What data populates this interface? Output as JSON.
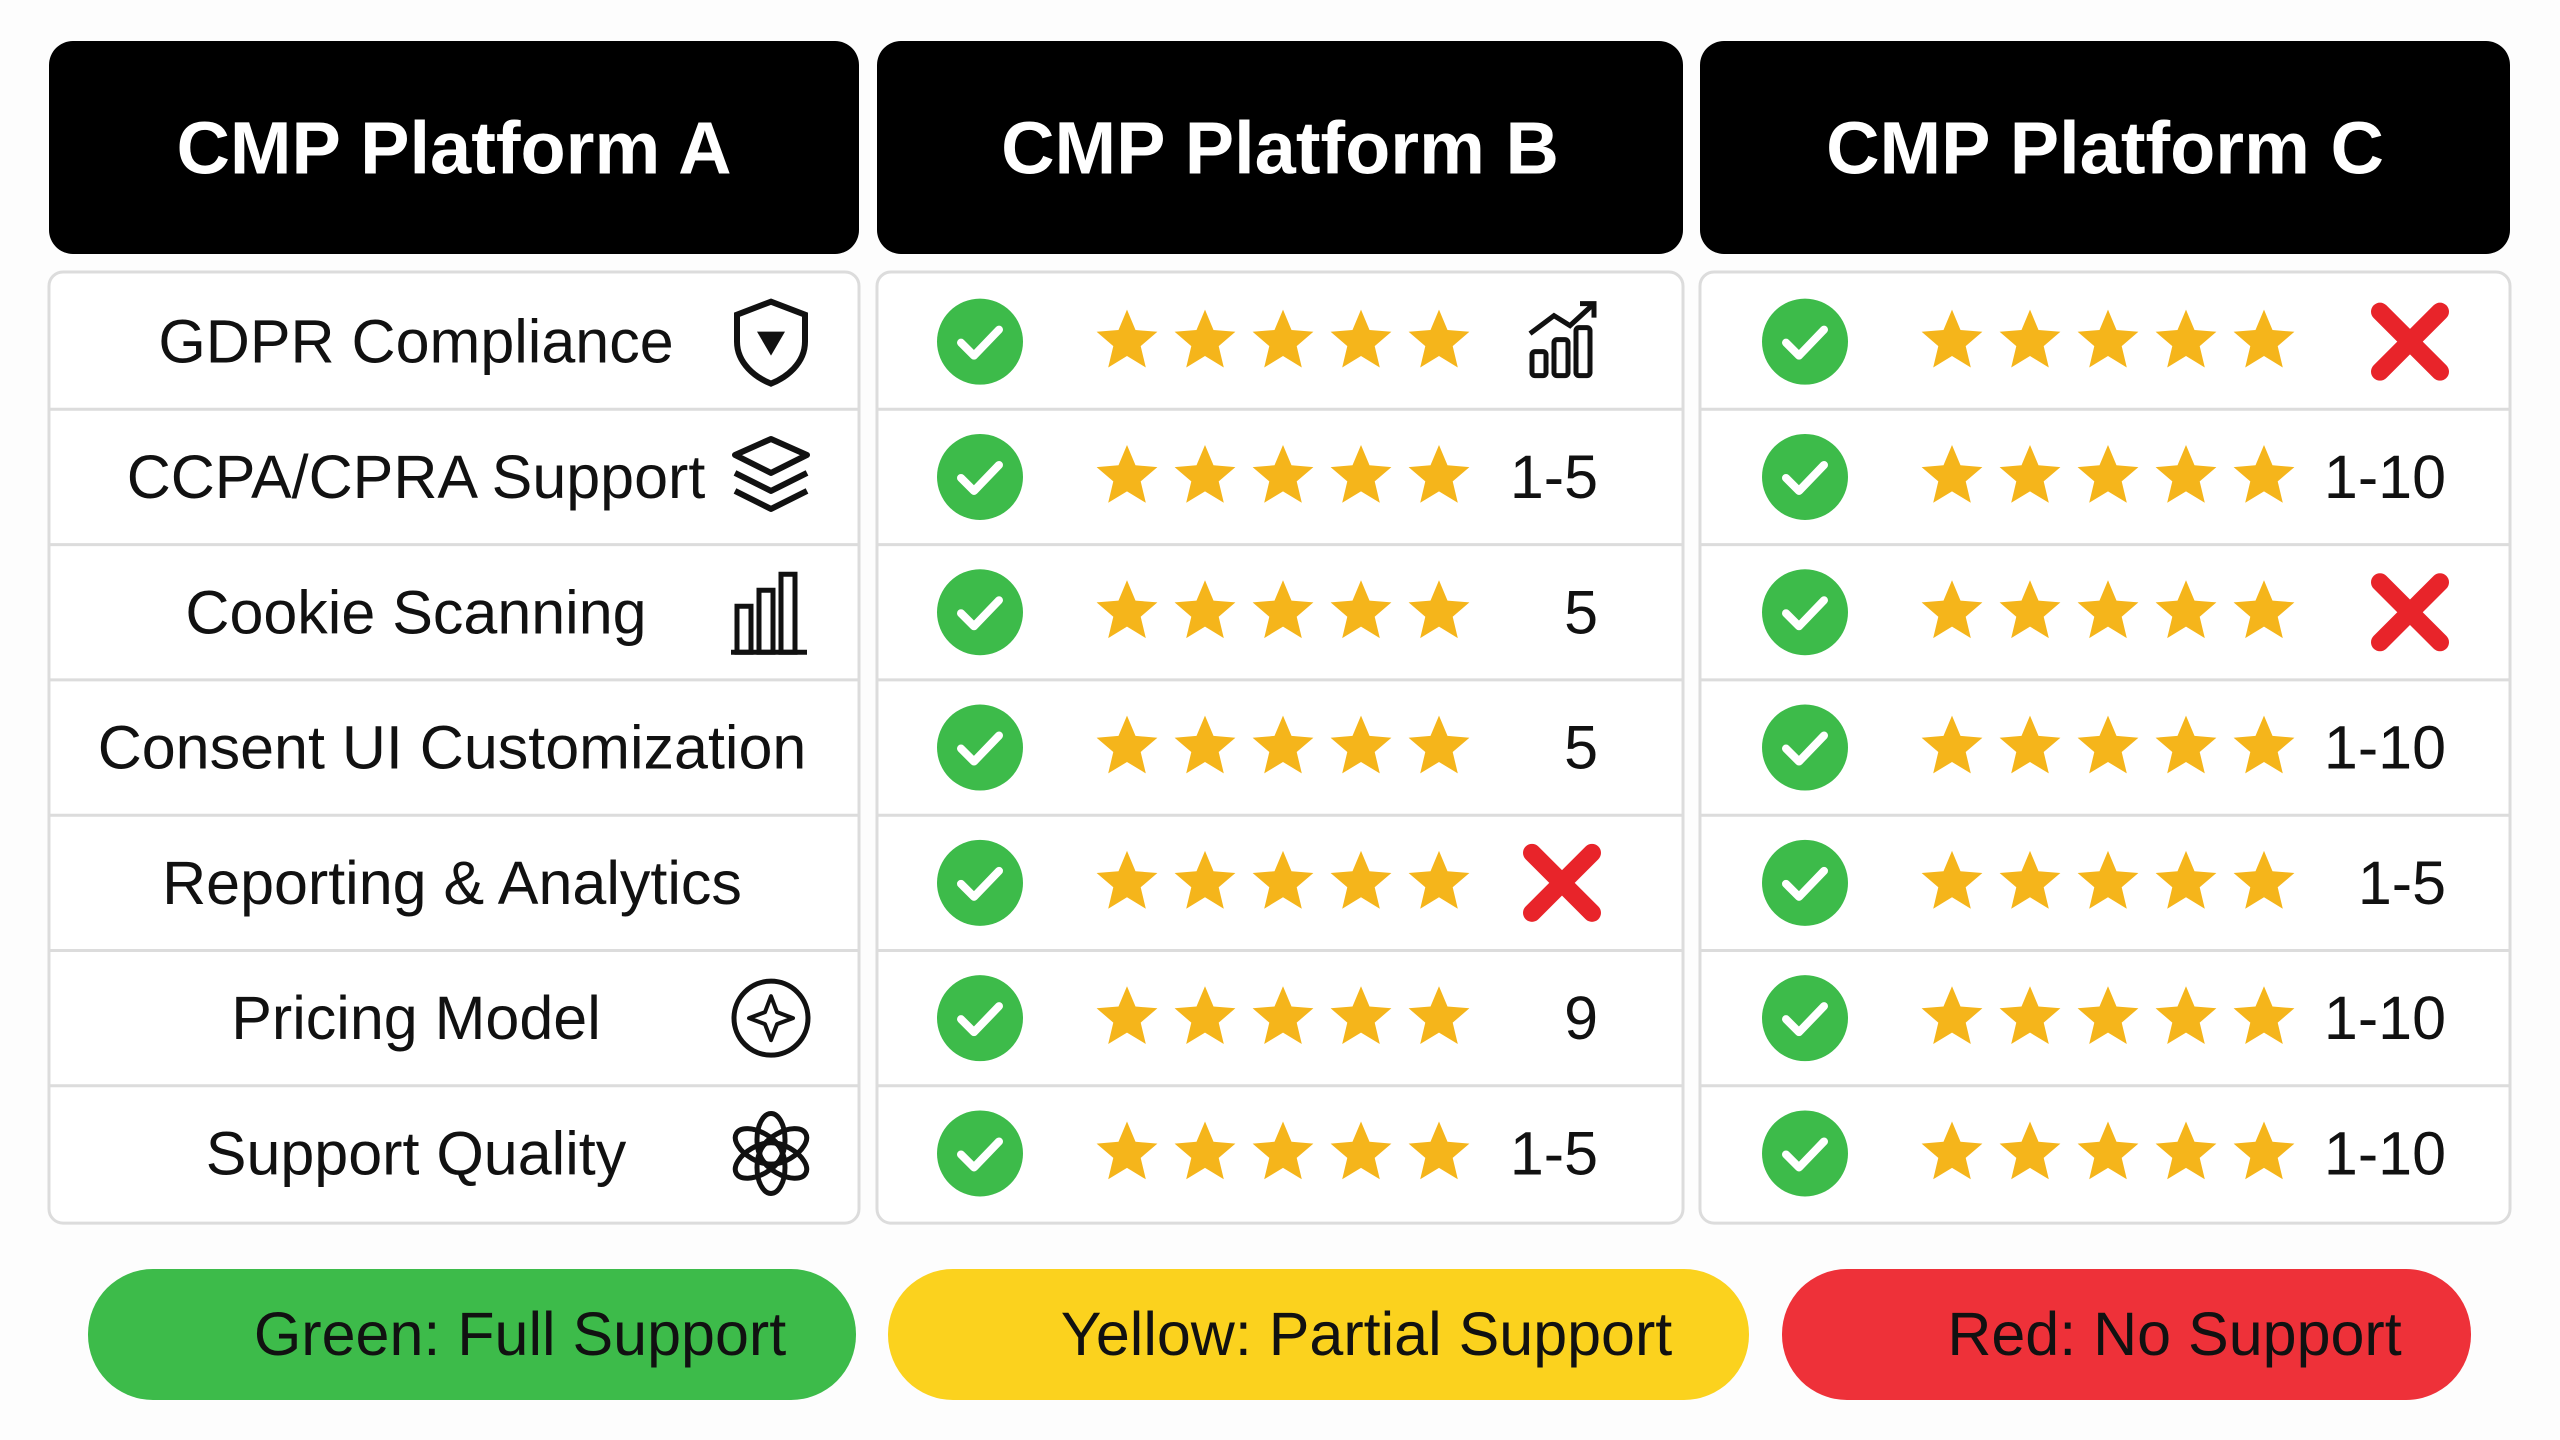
{
  "headers": [
    "CMP Platform A",
    "CMP Platform B",
    "CMP Platform C"
  ],
  "rows": [
    {
      "feature": "GDPR Compliance",
      "b": null,
      "c": null
    },
    {
      "feature": "CCPA/CPRA Support",
      "b": "1-5",
      "c": "1-10"
    },
    {
      "feature": "Cookie Scanning",
      "b": "5",
      "c": null
    },
    {
      "feature": "Consent UI Customization",
      "b": "5",
      "c": "1-10"
    },
    {
      "feature": "Reporting & Analytics",
      "b": null,
      "c": "1-5"
    },
    {
      "feature": "Pricing Model",
      "b": "9",
      "c": "1-10"
    },
    {
      "feature": "Support Quality",
      "b": "1-5",
      "c": "1-10"
    }
  ],
  "legend": [
    "Green: Full Support",
    "Yellow: Partial Support",
    "Red: No Support"
  ]
}
